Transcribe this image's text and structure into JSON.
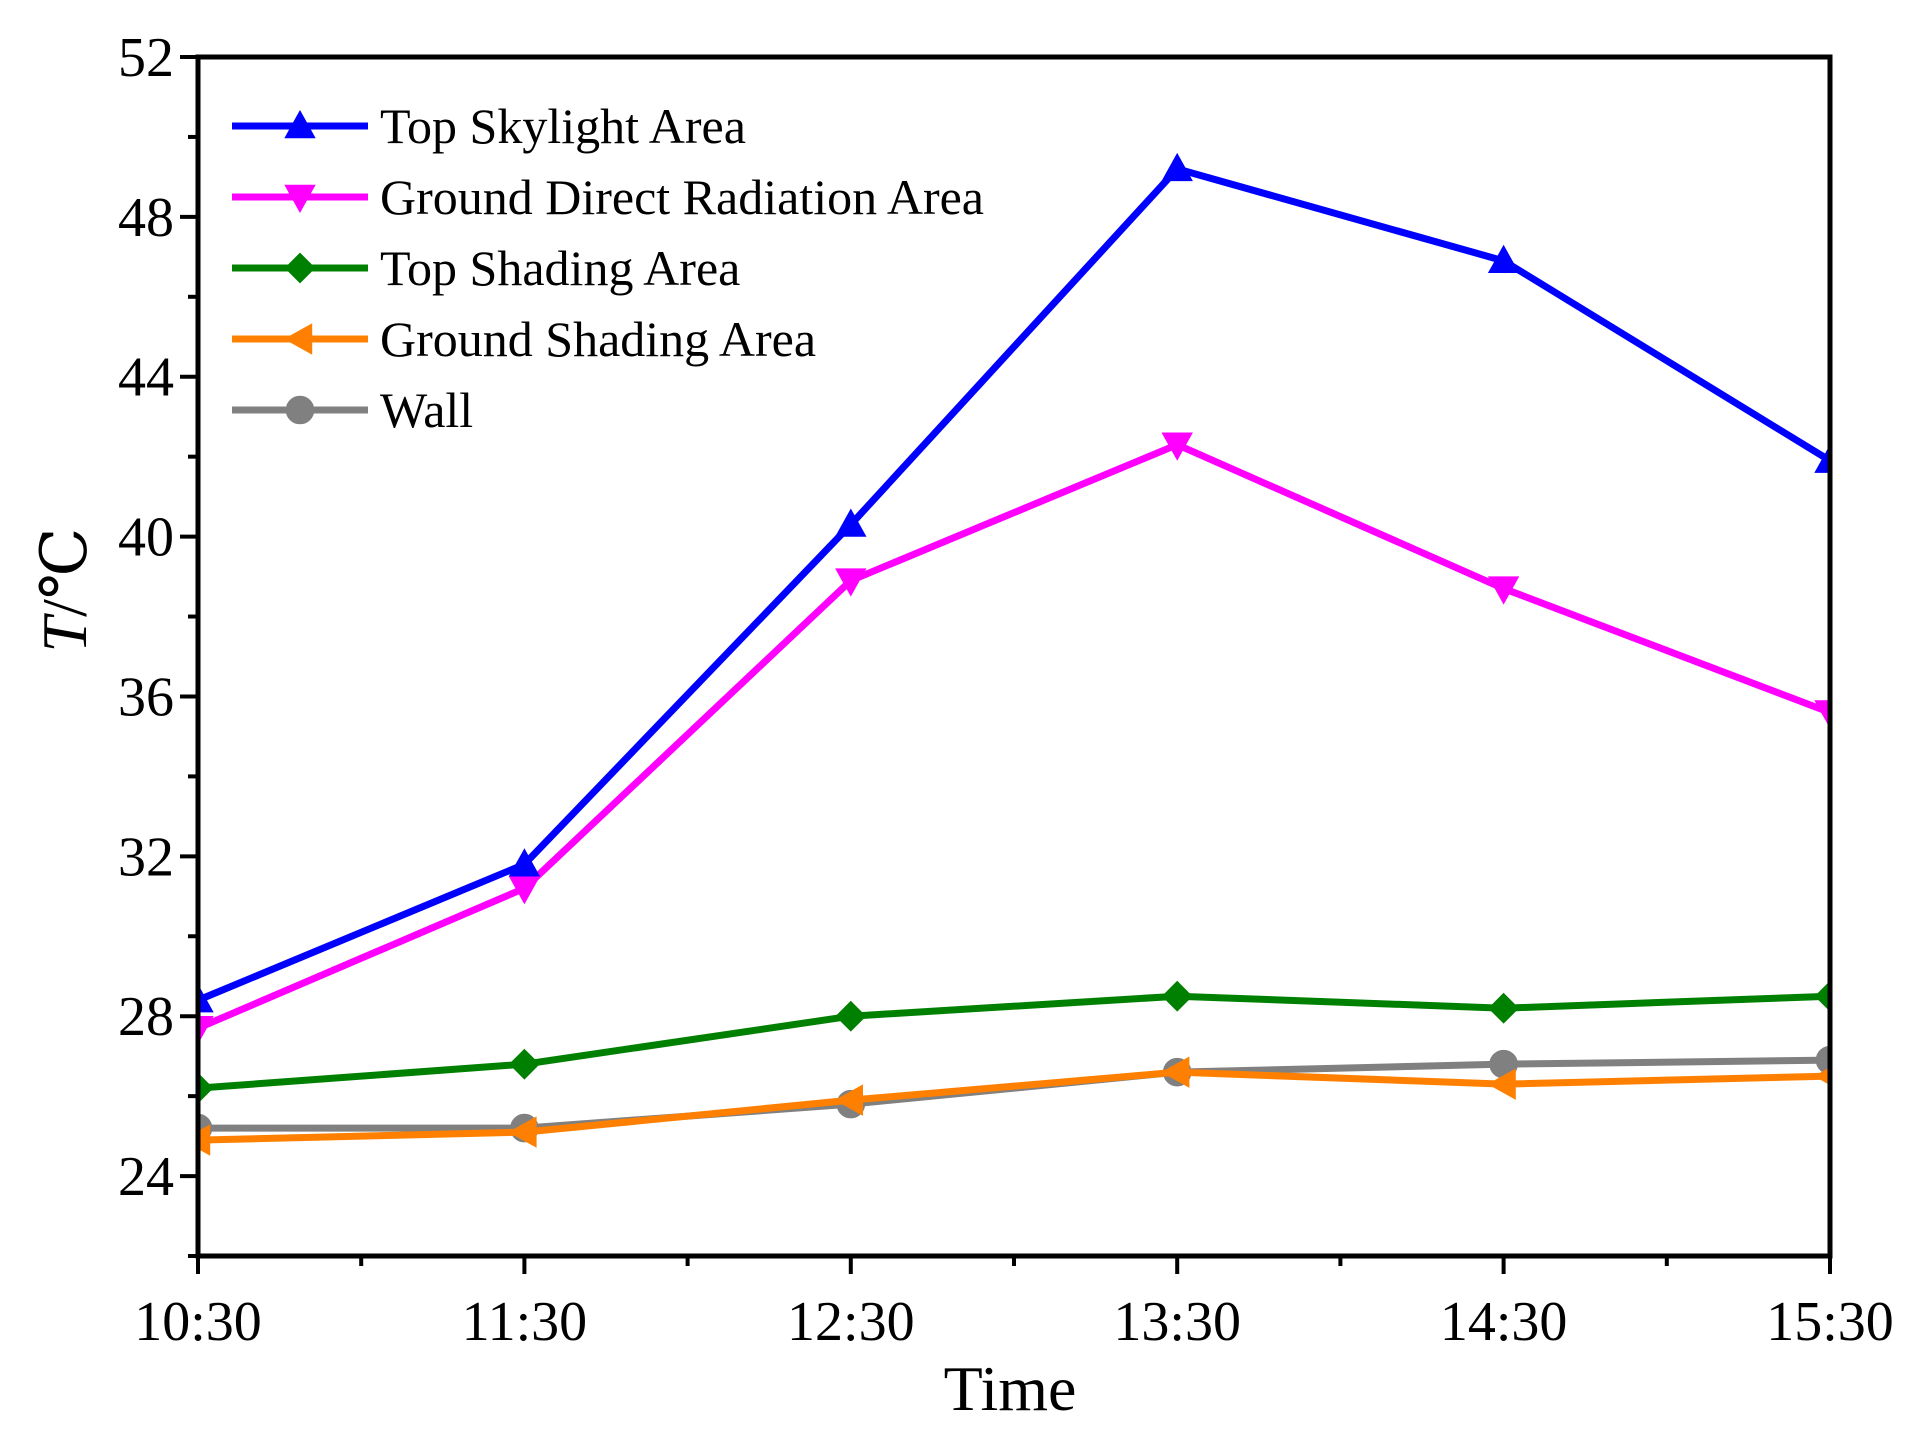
{
  "chart_data": {
    "type": "line",
    "title": "",
    "xlabel": "Time",
    "ylabel_italic": "T",
    "ylabel_rest": "/℃",
    "categories": [
      "10:30",
      "11:30",
      "12:30",
      "13:30",
      "14:30",
      "15:30"
    ],
    "ylim": [
      22,
      52
    ],
    "yticks": [
      24,
      28,
      32,
      36,
      40,
      44,
      48,
      52
    ],
    "legend_position": "top-left",
    "series": [
      {
        "name": "Top Skylight Area",
        "color": "#0000ff",
        "marker": "triangle-up",
        "values": [
          28.4,
          31.8,
          40.3,
          49.2,
          46.9,
          41.9
        ]
      },
      {
        "name": "Ground Direct Radiation Area",
        "color": "#ff00ff",
        "marker": "triangle-down",
        "values": [
          27.7,
          31.2,
          38.9,
          42.3,
          38.7,
          35.6
        ]
      },
      {
        "name": "Top Shading Area",
        "color": "#008000",
        "marker": "diamond",
        "values": [
          26.2,
          26.8,
          28.0,
          28.5,
          28.2,
          28.5
        ]
      },
      {
        "name": "Ground Shading Area",
        "color": "#ff8000",
        "marker": "triangle-left",
        "values": [
          24.9,
          25.1,
          25.9,
          26.6,
          26.3,
          26.5
        ]
      },
      {
        "name": "Wall",
        "color": "#808080",
        "marker": "circle",
        "values": [
          25.2,
          25.2,
          25.8,
          26.6,
          26.8,
          26.9
        ]
      }
    ]
  }
}
